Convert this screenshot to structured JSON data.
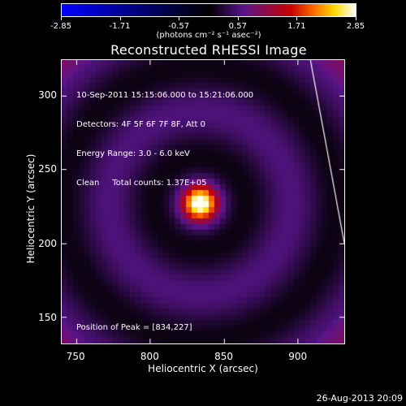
{
  "chart_data": {
    "type": "heatmap",
    "title": "Reconstructed RHESSI Image",
    "info_lines": [
      "10-Sep-2011 15:15:06.000 to 15:21:06.000",
      "Detectors: 4F 5F 6F 7F 8F, Att 0",
      "Energy Range: 3.0 - 6.0 keV",
      "Clean     Total counts: 1.37E+05"
    ],
    "peak_text": "Position of Peak = [834,227]",
    "peak": [
      834,
      227
    ],
    "xlabel": "Heliocentric X (arcsec)",
    "ylabel": "Heliocentric Y (arcsec)",
    "xlim": [
      740,
      932
    ],
    "ylim": [
      132,
      324
    ],
    "xticks": [
      "750",
      "800",
      "850",
      "900"
    ],
    "yticks": [
      "150",
      "200",
      "250",
      "300"
    ],
    "colorbar": {
      "range": [
        -2.85,
        2.85
      ],
      "ticks": [
        "-2.85",
        "-1.71",
        "-0.57",
        "0.57",
        "1.71",
        "2.85"
      ],
      "unit": "(photons cm⁻² s⁻¹ asec⁻²)"
    },
    "limb_line": [
      [
        909,
        324
      ],
      [
        932,
        200
      ]
    ]
  },
  "footer": "26-Aug-2013 20:09"
}
